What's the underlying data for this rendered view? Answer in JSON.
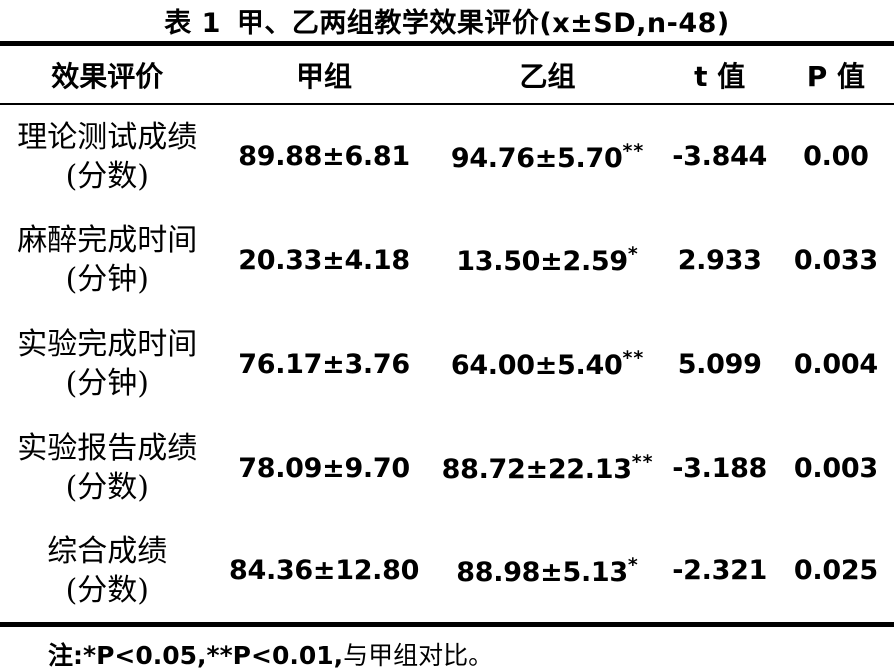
{
  "table": {
    "title_label": "表 1",
    "title_text": "甲、乙两组教学效果评价(x±SD,n-48)",
    "columns": [
      "效果评价",
      "甲组",
      "乙组",
      "t 值",
      "P 值"
    ],
    "rows": [
      {
        "label1": "理论测试成绩",
        "label2": "(分数)",
        "a": "89.88±6.81",
        "b": "94.76±5.70",
        "b_sup": "**",
        "t": "-3.844",
        "p": "0.00"
      },
      {
        "label1": "麻醉完成时间",
        "label2": "(分钟)",
        "a": "20.33±4.18",
        "b": "13.50±2.59",
        "b_sup": "*",
        "t": "2.933",
        "p": "0.033"
      },
      {
        "label1": "实验完成时间",
        "label2": "(分钟)",
        "a": "76.17±3.76",
        "b": "64.00±5.40",
        "b_sup": "**",
        "t": "5.099",
        "p": "0.004"
      },
      {
        "label1": "实验报告成绩",
        "label2": "(分数)",
        "a": "78.09±9.70",
        "b": "88.72±22.13",
        "b_sup": "**",
        "t": "-3.188",
        "p": "0.003"
      },
      {
        "label1": "综合成绩",
        "label2": "(分数)",
        "a": "84.36±12.80",
        "b": "88.98±5.13",
        "b_sup": "*",
        "t": "-2.321",
        "p": "0.025"
      }
    ],
    "note_stats": "注:*P<0.05,**P<0.01,",
    "note_text": "与甲组对比。",
    "text_color": "#000000",
    "background_color": "#ffffff"
  }
}
